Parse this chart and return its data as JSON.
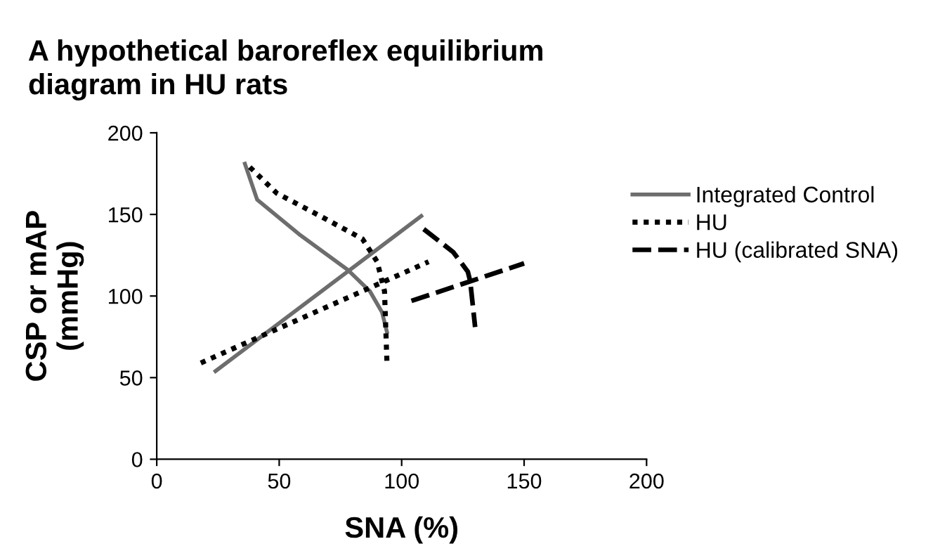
{
  "chart_data": {
    "type": "line",
    "title": "A hypothetical baroreflex equilibrium\ndiagram in HU rats",
    "xlabel": "SNA (%)",
    "ylabel": "CSP or mAP\n(mmHg)",
    "xlim": [
      0,
      200
    ],
    "ylim": [
      0,
      200
    ],
    "xticks": [
      0,
      50,
      100,
      150,
      200
    ],
    "yticks": [
      0,
      50,
      100,
      150,
      200
    ],
    "grid": false,
    "legend": "right",
    "marker": "none",
    "series": [
      {
        "name": "Integrated Control",
        "color": "#6d6d6d",
        "line_style": "solid",
        "x": [
          36,
          41,
          58,
          78,
          87,
          92,
          94,
          null,
          24,
          108
        ],
        "values": [
          181,
          159,
          138,
          116,
          103,
          90,
          78,
          null,
          54,
          149
        ]
      },
      {
        "name": "HU",
        "color": "#000000",
        "line_style": "dotted",
        "x": [
          38,
          49,
          68,
          84,
          90,
          93,
          94,
          null,
          18,
          111
        ],
        "values": [
          179,
          163,
          148,
          135,
          121,
          103,
          59,
          null,
          59,
          121
        ]
      },
      {
        "name": "HU (calibrated SNA)",
        "color": "#000000",
        "line_style": "dashed",
        "x": [
          109,
          121,
          127,
          128,
          130,
          null,
          104,
          150
        ],
        "values": [
          141,
          127,
          115,
          109,
          81,
          null,
          97,
          120
        ]
      }
    ]
  }
}
